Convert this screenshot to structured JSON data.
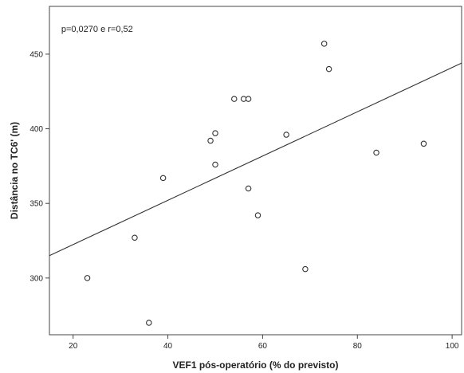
{
  "chart_data": {
    "type": "scatter",
    "title": "",
    "annotation": "p=0,0270 e r=0,52",
    "xlabel": "VEF1 pós-operatório (% do previsto)",
    "ylabel": "Distância no TC6' (m)",
    "xlim": [
      15,
      102
    ],
    "ylim": [
      262,
      482
    ],
    "xticks": [
      20,
      40,
      60,
      80,
      100
    ],
    "yticks": [
      300,
      350,
      400,
      450
    ],
    "grid": false,
    "legend": "none",
    "points": [
      {
        "x": 23,
        "y": 300
      },
      {
        "x": 33,
        "y": 327
      },
      {
        "x": 36,
        "y": 270
      },
      {
        "x": 39,
        "y": 367
      },
      {
        "x": 49,
        "y": 392
      },
      {
        "x": 50,
        "y": 397
      },
      {
        "x": 50,
        "y": 376
      },
      {
        "x": 54,
        "y": 420
      },
      {
        "x": 56,
        "y": 420
      },
      {
        "x": 57,
        "y": 420
      },
      {
        "x": 57,
        "y": 360
      },
      {
        "x": 59,
        "y": 342
      },
      {
        "x": 65,
        "y": 396
      },
      {
        "x": 69,
        "y": 306
      },
      {
        "x": 73,
        "y": 457
      },
      {
        "x": 74,
        "y": 440
      },
      {
        "x": 84,
        "y": 384
      },
      {
        "x": 94,
        "y": 390
      }
    ],
    "fit_line": {
      "x": [
        15,
        102
      ],
      "y": [
        315,
        444
      ]
    },
    "colors": {
      "marker": "#333333",
      "line": "#333333",
      "frame": "#444444"
    }
  }
}
